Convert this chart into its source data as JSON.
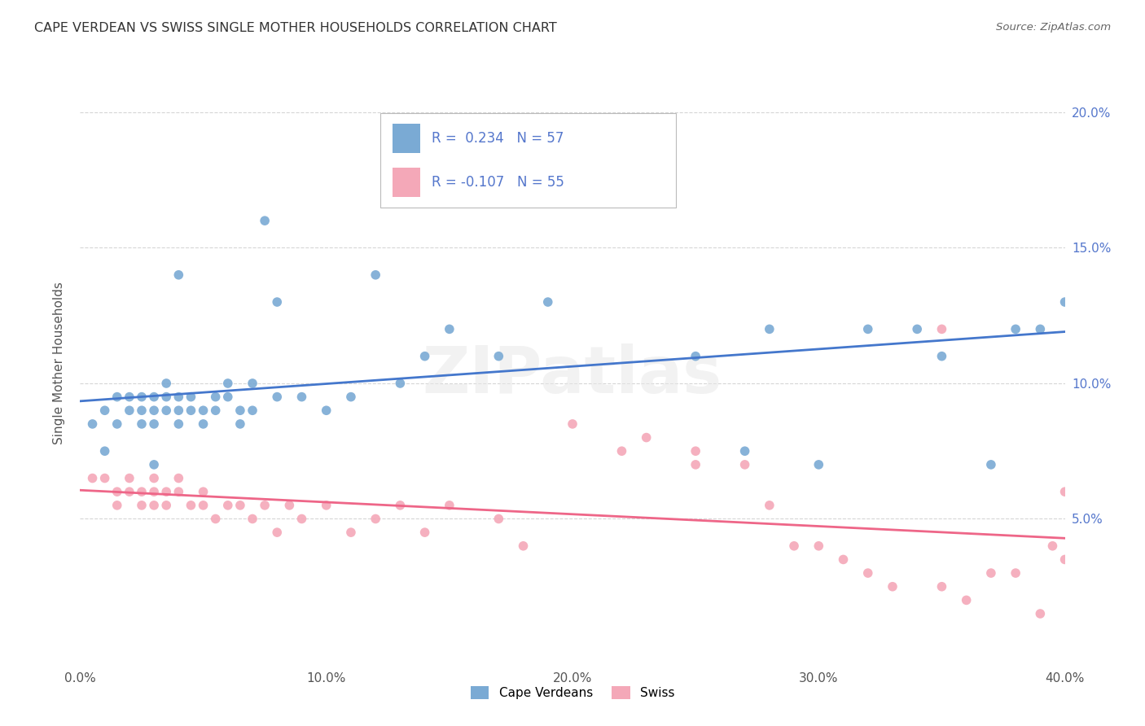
{
  "title": "CAPE VERDEAN VS SWISS SINGLE MOTHER HOUSEHOLDS CORRELATION CHART",
  "source": "Source: ZipAtlas.com",
  "ylabel": "Single Mother Households",
  "xlim": [
    0.0,
    0.4
  ],
  "ylim": [
    -0.005,
    0.22
  ],
  "yticks": [
    0.05,
    0.1,
    0.15,
    0.2
  ],
  "ytick_labels": [
    "5.0%",
    "10.0%",
    "15.0%",
    "20.0%"
  ],
  "xticks": [
    0.0,
    0.1,
    0.2,
    0.3,
    0.4
  ],
  "xtick_labels": [
    "0.0%",
    "10.0%",
    "20.0%",
    "30.0%",
    "40.0%"
  ],
  "cape_verdean_color": "#7aaad4",
  "swiss_color": "#f4a8b8",
  "trend_cape_color": "#4477cc",
  "trend_swiss_color": "#ee6688",
  "axis_label_color": "#5577cc",
  "watermark": "ZIPatlas",
  "legend_r_cape": "0.234",
  "legend_n_cape": "57",
  "legend_r_swiss": "-0.107",
  "legend_n_swiss": "55",
  "cape_verdean_x": [
    0.005,
    0.01,
    0.01,
    0.015,
    0.015,
    0.02,
    0.02,
    0.025,
    0.025,
    0.025,
    0.03,
    0.03,
    0.03,
    0.03,
    0.035,
    0.035,
    0.035,
    0.04,
    0.04,
    0.04,
    0.04,
    0.045,
    0.045,
    0.05,
    0.05,
    0.055,
    0.055,
    0.06,
    0.06,
    0.065,
    0.065,
    0.07,
    0.07,
    0.075,
    0.08,
    0.08,
    0.09,
    0.1,
    0.11,
    0.12,
    0.13,
    0.14,
    0.15,
    0.17,
    0.19,
    0.22,
    0.25,
    0.27,
    0.28,
    0.3,
    0.32,
    0.34,
    0.35,
    0.37,
    0.38,
    0.39,
    0.4
  ],
  "cape_verdean_y": [
    0.085,
    0.09,
    0.075,
    0.095,
    0.085,
    0.09,
    0.095,
    0.085,
    0.09,
    0.095,
    0.09,
    0.095,
    0.085,
    0.07,
    0.09,
    0.095,
    0.1,
    0.085,
    0.09,
    0.095,
    0.14,
    0.09,
    0.095,
    0.09,
    0.085,
    0.09,
    0.095,
    0.095,
    0.1,
    0.09,
    0.085,
    0.1,
    0.09,
    0.16,
    0.13,
    0.095,
    0.095,
    0.09,
    0.095,
    0.14,
    0.1,
    0.11,
    0.12,
    0.11,
    0.13,
    0.18,
    0.11,
    0.075,
    0.12,
    0.07,
    0.12,
    0.12,
    0.11,
    0.07,
    0.12,
    0.12,
    0.13
  ],
  "swiss_x": [
    0.005,
    0.01,
    0.015,
    0.015,
    0.02,
    0.02,
    0.025,
    0.025,
    0.03,
    0.03,
    0.03,
    0.035,
    0.035,
    0.04,
    0.04,
    0.045,
    0.05,
    0.05,
    0.055,
    0.06,
    0.065,
    0.07,
    0.075,
    0.08,
    0.085,
    0.09,
    0.1,
    0.11,
    0.12,
    0.13,
    0.14,
    0.15,
    0.17,
    0.18,
    0.2,
    0.22,
    0.23,
    0.25,
    0.27,
    0.28,
    0.29,
    0.3,
    0.31,
    0.32,
    0.33,
    0.35,
    0.36,
    0.37,
    0.38,
    0.39,
    0.395,
    0.4,
    0.4,
    0.35,
    0.25
  ],
  "swiss_y": [
    0.065,
    0.065,
    0.06,
    0.055,
    0.06,
    0.065,
    0.055,
    0.06,
    0.06,
    0.065,
    0.055,
    0.06,
    0.055,
    0.06,
    0.065,
    0.055,
    0.055,
    0.06,
    0.05,
    0.055,
    0.055,
    0.05,
    0.055,
    0.045,
    0.055,
    0.05,
    0.055,
    0.045,
    0.05,
    0.055,
    0.045,
    0.055,
    0.05,
    0.04,
    0.085,
    0.075,
    0.08,
    0.075,
    0.07,
    0.055,
    0.04,
    0.04,
    0.035,
    0.03,
    0.025,
    0.025,
    0.02,
    0.03,
    0.03,
    0.015,
    0.04,
    0.035,
    0.06,
    0.12,
    0.07
  ]
}
